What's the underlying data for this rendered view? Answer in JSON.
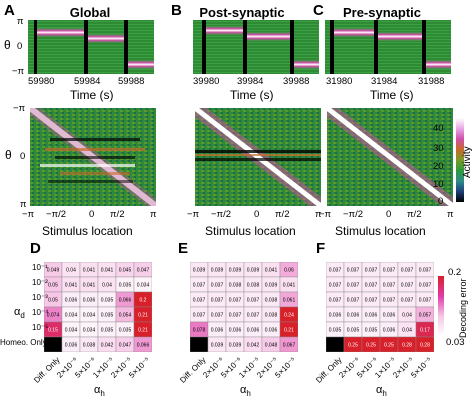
{
  "panels": {
    "A": {
      "letter": "A",
      "title": "Global",
      "time_ticks": [
        "59980",
        "59984",
        "59988"
      ]
    },
    "B": {
      "letter": "B",
      "title": "Post-synaptic",
      "time_ticks": [
        "39980",
        "39984",
        "39988"
      ]
    },
    "C": {
      "letter": "C",
      "title": "Pre-synaptic",
      "time_ticks": [
        "31980",
        "31984",
        "31988"
      ]
    },
    "D": {
      "letter": "D"
    },
    "E": {
      "letter": "E"
    },
    "F": {
      "letter": "F"
    }
  },
  "labels": {
    "theta": "θ",
    "time": "Time (s)",
    "stim": "Stimulus location",
    "activity": "Activity",
    "decoding_error": "Decoding error",
    "alpha_d": "α",
    "alpha_d_sub": "d",
    "alpha_h": "α",
    "alpha_h_sub": "h"
  },
  "raster_y_ticks": [
    "π",
    "0",
    "−π"
  ],
  "matrix_y_ticks": [
    "−π",
    "0",
    "π"
  ],
  "stim_ticks": [
    "−π",
    "−π/2",
    "0",
    "π/2",
    "π"
  ],
  "activity_colorbar": {
    "ticks": [
      "40",
      "30",
      "20",
      "10",
      "0"
    ],
    "colors": [
      "#000000",
      "#1f3f7a",
      "#2f8b8b",
      "#2e9a3a",
      "#7a9a2a",
      "#c96a2a",
      "#d04fa8",
      "#e8a8e8",
      "#ffffff"
    ]
  },
  "error_colorbar": {
    "ticks": [
      "0.2",
      "0.03"
    ],
    "colors": [
      "#ffffff",
      "#f5c6e6",
      "#e03aa8",
      "#d8202a"
    ]
  },
  "heatmap_rows": [
    "10⁻¹",
    "10⁻²",
    "10⁻³",
    "10⁻⁴",
    "10⁻⁵",
    "Homeo. Only"
  ],
  "heatmap_cols": [
    "Diff. Only",
    "2×10⁻⁶",
    "5×10⁻⁶",
    "1×10⁻⁵",
    "2×10⁻⁵",
    "5×10⁻⁵"
  ],
  "chart_data": [
    {
      "panel": "D",
      "type": "heatmap",
      "xlabel": "αh",
      "ylabel": "αd",
      "values": [
        [
          0.049,
          0.04,
          0.041,
          0.041,
          0.045,
          0.047
        ],
        [
          0.05,
          0.041,
          0.041,
          0.04,
          0.035,
          0.034
        ],
        [
          0.05,
          0.036,
          0.036,
          0.035,
          0.066,
          0.2
        ],
        [
          0.074,
          0.034,
          0.034,
          0.035,
          0.054,
          0.21
        ],
        [
          0.15,
          0.034,
          0.034,
          0.035,
          0.035,
          0.21
        ],
        [
          null,
          0.036,
          0.038,
          0.042,
          0.047,
          0.066
        ]
      ],
      "labels": [
        [
          "0.049",
          "0.04",
          "0.041",
          "0.041",
          "0.045",
          "0.047"
        ],
        [
          "0.05",
          "0.041",
          "0.041",
          "0.04",
          "0.035",
          "0.034"
        ],
        [
          "0.05",
          "0.036",
          "0.036",
          "0.035",
          "0.066",
          "0.2"
        ],
        [
          "0.074",
          "0.034",
          "0.034",
          "0.035",
          "0.054",
          "0.21"
        ],
        [
          "0.15",
          "0.034",
          "0.034",
          "0.035",
          "0.035",
          "0.21"
        ],
        [
          "",
          "0.036",
          "0.038",
          "0.042",
          "0.047",
          "0.066"
        ]
      ]
    },
    {
      "panel": "E",
      "type": "heatmap",
      "xlabel": "αh",
      "ylabel": "αd",
      "values": [
        [
          0.039,
          0.039,
          0.039,
          0.039,
          0.041,
          0.06
        ],
        [
          0.037,
          0.037,
          0.038,
          0.038,
          0.039,
          0.041
        ],
        [
          0.037,
          0.037,
          0.037,
          0.037,
          0.038,
          0.061
        ],
        [
          0.037,
          0.037,
          0.037,
          0.037,
          0.038,
          0.24
        ],
        [
          0.078,
          0.036,
          0.036,
          0.036,
          0.036,
          0.21
        ],
        [
          null,
          0.039,
          0.039,
          0.042,
          0.048,
          0.067
        ]
      ],
      "labels": [
        [
          "0.039",
          "0.039",
          "0.039",
          "0.039",
          "0.041",
          "0.06"
        ],
        [
          "0.037",
          "0.037",
          "0.038",
          "0.038",
          "0.039",
          "0.041"
        ],
        [
          "0.037",
          "0.037",
          "0.037",
          "0.037",
          "0.038",
          "0.061"
        ],
        [
          "0.037",
          "0.037",
          "0.037",
          "0.037",
          "0.038",
          "0.24"
        ],
        [
          "0.078",
          "0.036",
          "0.036",
          "0.036",
          "0.036",
          "0.21"
        ],
        [
          "",
          "0.039",
          "0.039",
          "0.042",
          "0.048",
          "0.067"
        ]
      ]
    },
    {
      "panel": "F",
      "type": "heatmap",
      "xlabel": "αh",
      "ylabel": "αd",
      "values": [
        [
          0.037,
          0.037,
          0.037,
          0.037,
          0.037,
          0.037
        ],
        [
          0.037,
          0.037,
          0.037,
          0.037,
          0.037,
          0.037
        ],
        [
          0.037,
          0.037,
          0.037,
          0.037,
          0.037,
          0.037
        ],
        [
          0.036,
          0.036,
          0.036,
          0.036,
          0.04,
          0.057
        ],
        [
          0.035,
          0.035,
          0.035,
          0.036,
          0.04,
          0.17
        ],
        [
          null,
          0.25,
          0.25,
          0.25,
          0.28,
          0.28
        ]
      ],
      "labels": [
        [
          "0.037",
          "0.037",
          "0.037",
          "0.037",
          "0.037",
          "0.037"
        ],
        [
          "0.037",
          "0.037",
          "0.037",
          "0.037",
          "0.037",
          "0.037"
        ],
        [
          "0.037",
          "0.037",
          "0.037",
          "0.037",
          "0.037",
          "0.037"
        ],
        [
          "0.036",
          "0.036",
          "0.036",
          "0.036",
          "0.04",
          "0.057"
        ],
        [
          "0.035",
          "0.035",
          "0.035",
          "0.036",
          "0.04",
          "0.17"
        ],
        [
          "",
          "0.25",
          "0.25",
          "0.25",
          "0.28",
          "0.28"
        ]
      ]
    }
  ]
}
